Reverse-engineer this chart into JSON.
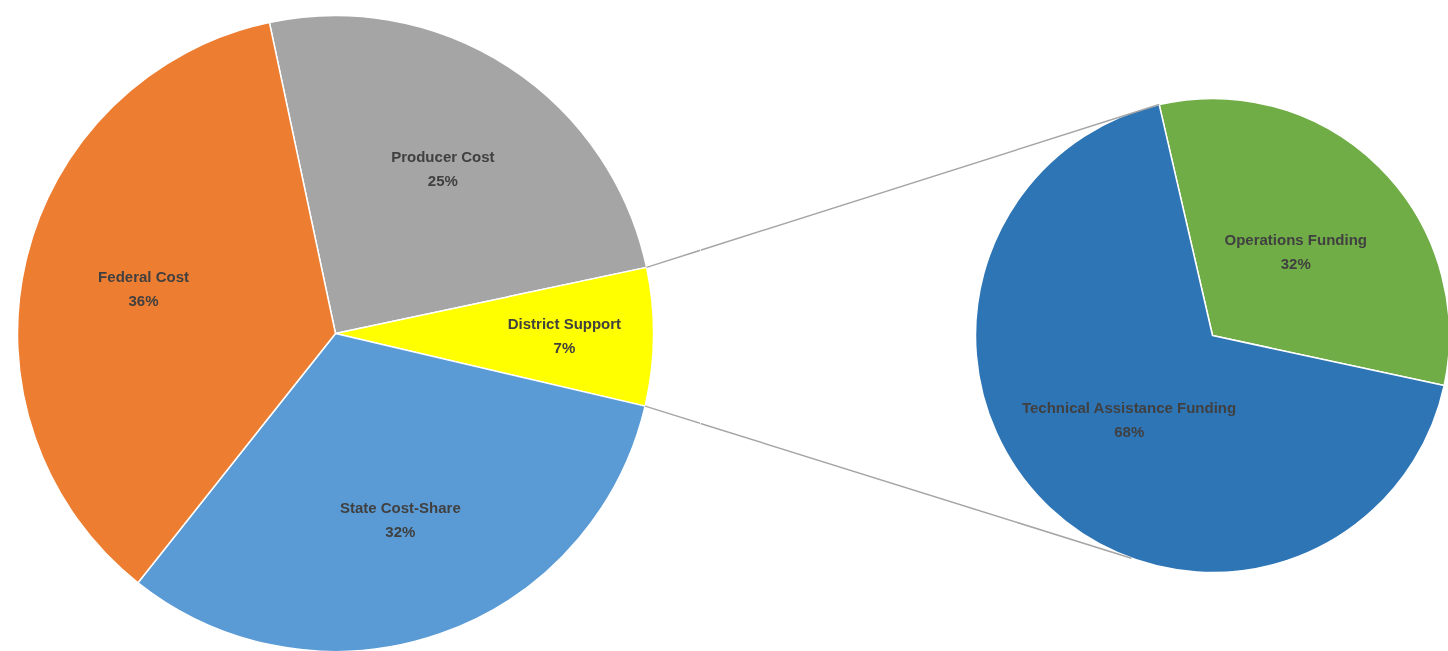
{
  "chart_data": [
    {
      "type": "pie",
      "categories": [
        "Producer Cost",
        "District Support",
        "State Cost-Share",
        "Federal Cost"
      ],
      "values": [
        25,
        7,
        32,
        36
      ],
      "colors": [
        "#a5a5a5",
        "#ffff00",
        "#5b9bd5",
        "#ed7d31"
      ],
      "value_labels": [
        "25%",
        "7%",
        "32%",
        "36%"
      ]
    },
    {
      "type": "pie",
      "categories": [
        "Operations Funding",
        "Technical Assistance Funding"
      ],
      "values": [
        32,
        68
      ],
      "colors": [
        "#70ad47",
        "#2e75b6"
      ],
      "value_labels": [
        "32%",
        "68%"
      ]
    }
  ]
}
